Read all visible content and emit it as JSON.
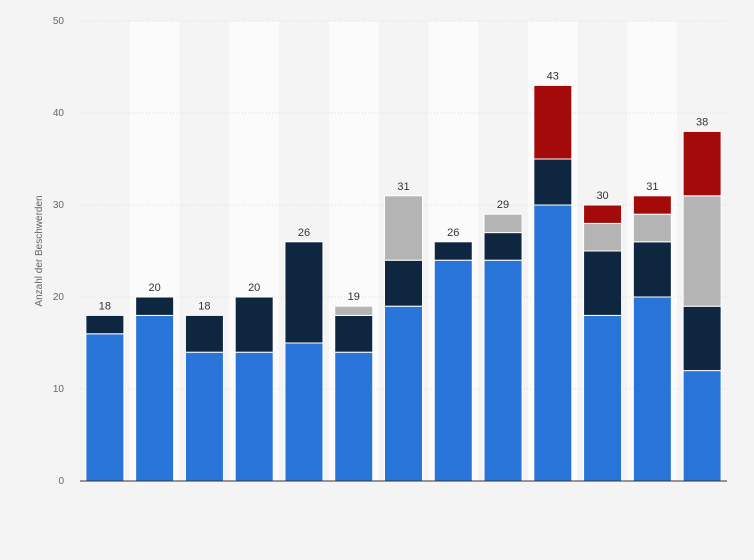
{
  "chart_data": {
    "type": "bar",
    "stacked": true,
    "title": "",
    "xlabel": "",
    "ylabel": "Anzahl der Beschwerden",
    "ylim": [
      0,
      50
    ],
    "yticks": [
      0,
      10,
      20,
      30,
      40,
      50
    ],
    "categories": [
      "",
      "",
      "",
      "",
      "",
      "",
      "",
      "",
      "",
      "",
      "",
      "",
      ""
    ],
    "totals": [
      18,
      20,
      18,
      20,
      26,
      19,
      31,
      26,
      29,
      43,
      30,
      31,
      38
    ],
    "series": [
      {
        "color": "#2874d9",
        "values": [
          16,
          18,
          14,
          14,
          15,
          14,
          19,
          24,
          24,
          30,
          18,
          20,
          12
        ]
      },
      {
        "color": "#0e2640",
        "values": [
          2,
          2,
          4,
          6,
          11,
          4,
          5,
          2,
          3,
          5,
          7,
          6,
          7
        ]
      },
      {
        "color": "#b4b4b4",
        "values": [
          0,
          0,
          0,
          0,
          0,
          1,
          7,
          0,
          2,
          0,
          3,
          3,
          12
        ]
      },
      {
        "color": "#a50a0a",
        "values": [
          0,
          0,
          0,
          0,
          0,
          0,
          0,
          0,
          0,
          8,
          2,
          2,
          7
        ]
      }
    ],
    "grid": true,
    "legend": "none"
  }
}
